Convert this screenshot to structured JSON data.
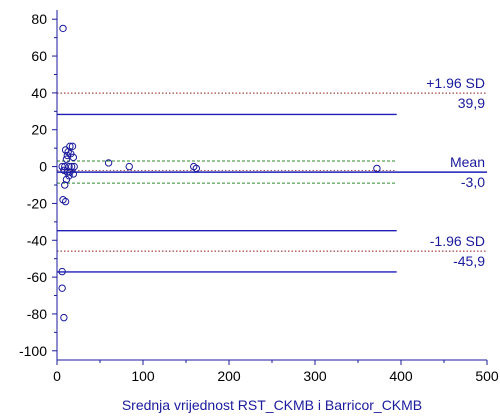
{
  "chart_data": {
    "type": "scatter",
    "title": "",
    "xlabel": "Srednja vrijednost RST_CKMB i Barricor_CKMB",
    "ylabel": "",
    "xlim": [
      0,
      500
    ],
    "ylim": [
      -105,
      85
    ],
    "grid": false,
    "x_ticks": [
      "0",
      "100",
      "200",
      "300",
      "400",
      "500"
    ],
    "y_ticks": [
      "80",
      "60",
      "40",
      "20",
      "0",
      "-20",
      "-40",
      "-60",
      "-80",
      "-100"
    ],
    "points": [
      {
        "x": 7,
        "y": 75
      },
      {
        "x": 15,
        "y": 11
      },
      {
        "x": 18,
        "y": 11
      },
      {
        "x": 10,
        "y": 9
      },
      {
        "x": 13,
        "y": 8
      },
      {
        "x": 16,
        "y": 7
      },
      {
        "x": 12,
        "y": 6
      },
      {
        "x": 19,
        "y": 5
      },
      {
        "x": 11,
        "y": 4
      },
      {
        "x": 60,
        "y": 2
      },
      {
        "x": 6,
        "y": 0
      },
      {
        "x": 9,
        "y": 0
      },
      {
        "x": 14,
        "y": 0
      },
      {
        "x": 17,
        "y": 0
      },
      {
        "x": 20,
        "y": 0
      },
      {
        "x": 84,
        "y": 0
      },
      {
        "x": 159,
        "y": 0
      },
      {
        "x": 162,
        "y": -1
      },
      {
        "x": 372,
        "y": -1
      },
      {
        "x": 8,
        "y": -2
      },
      {
        "x": 12,
        "y": -3
      },
      {
        "x": 15,
        "y": -3
      },
      {
        "x": 19,
        "y": -4
      },
      {
        "x": 14,
        "y": -5
      },
      {
        "x": 11,
        "y": -7
      },
      {
        "x": 9,
        "y": -10
      },
      {
        "x": 7,
        "y": -18
      },
      {
        "x": 10,
        "y": -19
      },
      {
        "x": 6,
        "y": -57
      },
      {
        "x": 6,
        "y": -66
      },
      {
        "x": 8,
        "y": -82
      }
    ],
    "reference_lines": {
      "upper_loa": {
        "value": 39.9,
        "label": "+1.96 SD",
        "value_label": "39,9"
      },
      "mean": {
        "value": -3.0,
        "label": "Mean",
        "value_label": "-3,0"
      },
      "lower_loa": {
        "value": -45.9,
        "label": "-1.96 SD",
        "value_label": "-45,9"
      },
      "mean_ci": [
        3.0,
        -9.0
      ],
      "upper_loa_ci_outer": 28.3,
      "lower_loa_ci_outer": -34.8,
      "lower_loa_ci_inner": -57.2
    },
    "colors": {
      "points": "#1a1a9c",
      "loa_line": "#8b1a1a",
      "ci_line": "#1f1fb8",
      "mean_ci_line": "#2e8b2e",
      "axis": "#1a1a9c",
      "text": "#1a1a9c",
      "tick_text": "#000000"
    }
  }
}
